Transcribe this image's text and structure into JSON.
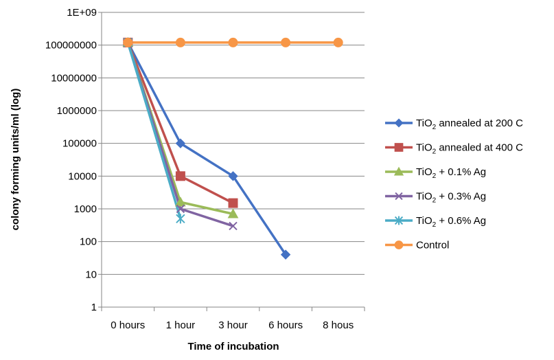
{
  "chart_data": {
    "type": "line",
    "title": "",
    "xlabel": "Time of incubation",
    "ylabel": "colony forming units/ml (log)",
    "y_scale": "log",
    "ylim": [
      1,
      1000000000
    ],
    "y_ticks": [
      {
        "value": 1,
        "label": "1"
      },
      {
        "value": 10,
        "label": "10"
      },
      {
        "value": 100,
        "label": "100"
      },
      {
        "value": 1000,
        "label": "1000"
      },
      {
        "value": 10000,
        "label": "10000"
      },
      {
        "value": 100000,
        "label": "100000"
      },
      {
        "value": 1000000,
        "label": "1000000"
      },
      {
        "value": 10000000,
        "label": "10000000"
      },
      {
        "value": 100000000,
        "label": "100000000"
      },
      {
        "value": 1000000000,
        "label": "1E+09"
      }
    ],
    "categories": [
      "0 hours",
      "1 hour",
      "3 hour",
      "6 hours",
      "8 hous"
    ],
    "grid": "horizontal",
    "legend_position": "right",
    "series": [
      {
        "name": "TiO2 annealed at 200 C",
        "label_main": "TiO",
        "label_sub": "2",
        "label_rest": " annealed at 200 C",
        "color": "#4472C4",
        "marker": "diamond",
        "values": [
          120000000,
          100000,
          10000,
          40,
          null
        ]
      },
      {
        "name": "TiO2 annealed at 400 C",
        "label_main": "TiO",
        "label_sub": "2",
        "label_rest": " annealed at 400 C",
        "color": "#C0504D",
        "marker": "square",
        "values": [
          120000000,
          10000,
          1500,
          null,
          null
        ]
      },
      {
        "name": "TiO2 + 0.1% Ag",
        "label_main": "TiO",
        "label_sub": "2",
        "label_rest": " + 0.1% Ag",
        "color": "#9BBB59",
        "marker": "triangle",
        "values": [
          120000000,
          1600,
          700,
          null,
          null
        ]
      },
      {
        "name": "TiO2 + 0.3% Ag",
        "label_main": "TiO",
        "label_sub": "2",
        "label_rest": " + 0.3% Ag",
        "color": "#8064A2",
        "marker": "x",
        "values": [
          120000000,
          1000,
          300,
          null,
          null
        ]
      },
      {
        "name": "TiO2 + 0.6% Ag",
        "label_main": "TiO",
        "label_sub": "2",
        "label_rest": " + 0.6% Ag",
        "color": "#4BACC6",
        "marker": "star",
        "values": [
          120000000,
          500,
          null,
          null,
          null
        ]
      },
      {
        "name": "Control",
        "label_main": "Control",
        "label_sub": "",
        "label_rest": "",
        "color": "#F79646",
        "marker": "circle",
        "values": [
          120000000,
          120000000,
          120000000,
          120000000,
          120000000
        ]
      }
    ]
  }
}
